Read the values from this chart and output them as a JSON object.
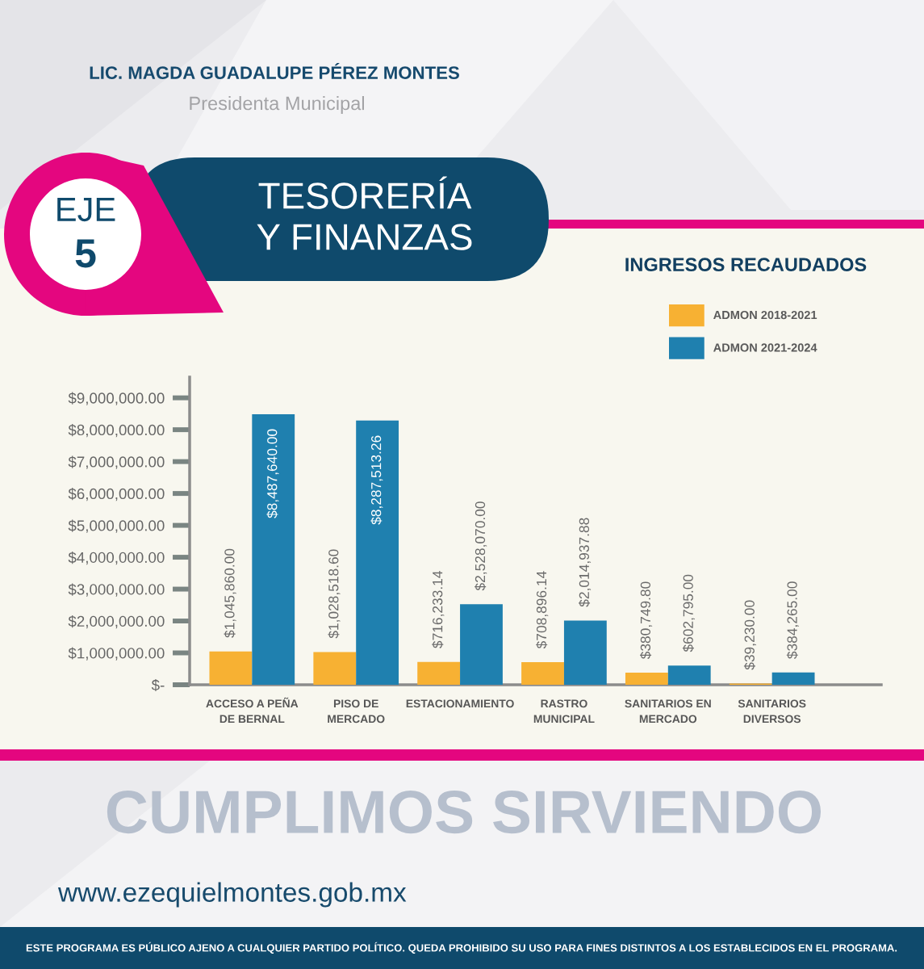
{
  "chart_data": {
    "type": "bar",
    "title": "INGRESOS RECAUDADOS",
    "categories": [
      "ACCESO A PEÑA\nDE BERNAL",
      "PISO DE\nMERCADO",
      "ESTACIONAMIENTO",
      "RASTRO\nMUNICIPAL",
      "SANITARIOS EN\nMERCADO",
      "SANITARIOS\nDIVERSOS"
    ],
    "series": [
      {
        "name": "ADMON 2018-2021",
        "color": "#f7b133",
        "values": [
          1045860.0,
          1028518.6,
          716233.14,
          708896.14,
          380749.8,
          39230.0
        ],
        "value_labels": [
          "$1,045,860.00",
          "$1,028,518.60",
          "$716,233.14",
          "$708,896.14",
          "$380,749.80",
          "$39,230.00"
        ]
      },
      {
        "name": "ADMON 2021-2024",
        "color": "#1f80af",
        "values": [
          8487640.0,
          8287513.26,
          2528070.0,
          2014937.88,
          602795.0,
          384265.0
        ],
        "value_labels": [
          "$8,487,640.00",
          "$8,287,513.26",
          "$2,528,070.00",
          "$2,014,937.88",
          "$602,795.00",
          "$384,265.00"
        ]
      }
    ],
    "ylim": [
      0,
      9650000
    ],
    "yticks": [
      {
        "value": 0,
        "label": "$-"
      },
      {
        "value": 1000000,
        "label": "$1,000,000.00"
      },
      {
        "value": 2000000,
        "label": "$2,000,000.00"
      },
      {
        "value": 3000000,
        "label": "$3,000,000.00"
      },
      {
        "value": 4000000,
        "label": "$4,000,000.00"
      },
      {
        "value": 5000000,
        "label": "$5,000,000.00"
      },
      {
        "value": 6000000,
        "label": "$6,000,000.00"
      },
      {
        "value": 7000000,
        "label": "$7,000,000.00"
      },
      {
        "value": 8000000,
        "label": "$8,000,000.00"
      },
      {
        "value": 9000000,
        "label": "$9,000,000.00"
      }
    ],
    "legend": "top right",
    "annotations": [
      "LIC. MAGDA GUADALUPE PÉREZ MONTES",
      "Presidenta Municipal",
      "EJE",
      "5",
      "TESORERÍA\nY FINANZAS",
      "CUMPLIMOS SIRVIENDO",
      "www.ezequielmontes.gob.mx",
      "ESTE PROGRAMA ES PÚBLICO AJENO A CUALQUIER PARTIDO POLÍTICO. QUEDA PROHIBIDO SU USO PARA FINES DISTINTOS A LOS ESTABLECIDOS EN EL PROGRAMA."
    ]
  }
}
